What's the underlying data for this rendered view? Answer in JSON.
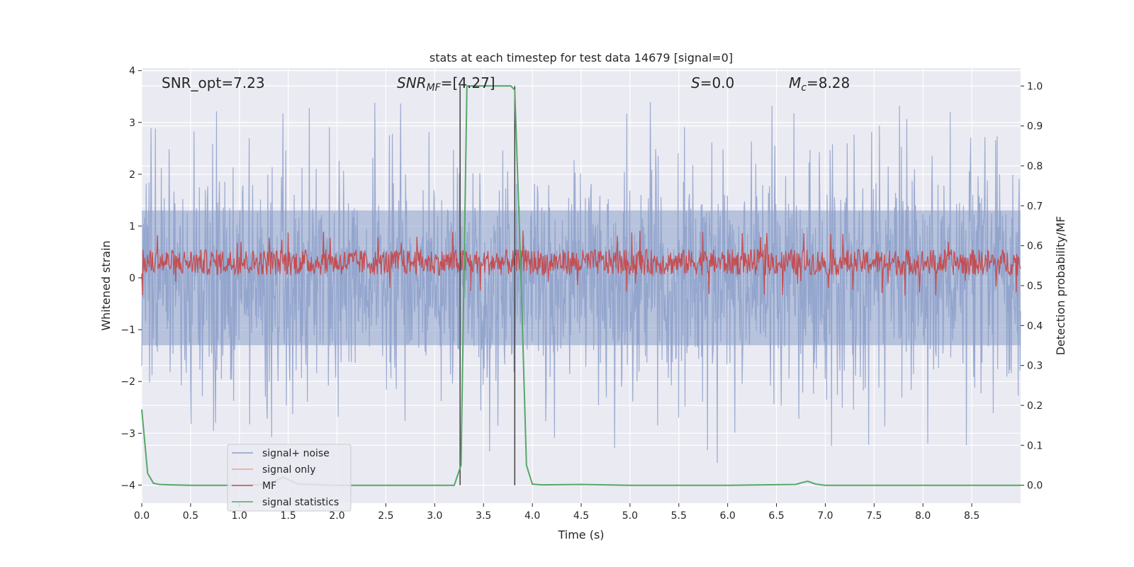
{
  "chart_data": {
    "type": "line",
    "title": "stats at each timestep for test data 14679 [signal=0]",
    "xlabel": "Time (s)",
    "ylabel_left": "Whitened strain",
    "ylabel_right": "Detection probability/MF",
    "xlim": [
      0.0,
      9.0
    ],
    "ylim_left": [
      -4.35,
      4.05
    ],
    "ylim_right": [
      -0.045,
      1.045
    ],
    "x_ticks": [
      "0.0",
      "0.5",
      "1.0",
      "1.5",
      "2.0",
      "2.5",
      "3.0",
      "3.5",
      "4.0",
      "4.5",
      "5.0",
      "5.5",
      "6.0",
      "6.5",
      "7.0",
      "7.5",
      "8.0",
      "8.5"
    ],
    "y_left_ticks": [
      "4",
      "3",
      "2",
      "1",
      "0",
      "−1",
      "−2",
      "−3",
      "−4"
    ],
    "y_right_ticks": [
      "1.0",
      "0.9",
      "0.8",
      "0.7",
      "0.6",
      "0.5",
      "0.4",
      "0.3",
      "0.2",
      "0.1",
      "0.0"
    ],
    "grid": true,
    "legend_position": "lower-left",
    "annotations": {
      "snr_opt": "SNR_opt=7.23",
      "snr_mf_main": "SNR",
      "snr_mf_sub": "MF",
      "snr_mf_value": "=[4.27]",
      "s_main": "S",
      "s_value": "=0.0",
      "mc_main": "M",
      "mc_sub": "c",
      "mc_value": "=8.28"
    },
    "vertical_lines_x": [
      3.26,
      3.82
    ],
    "series": [
      {
        "name": "signal+ noise",
        "color": "#8da0cb",
        "axis": "left",
        "description_values": {
          "noise_band_abs": 1.4,
          "spike_max": 3.6,
          "spike_min": -4.0
        }
      },
      {
        "name": "signal only",
        "color": "#e8a88c",
        "axis": "left",
        "values": []
      },
      {
        "name": "MF",
        "color": "#c44e52",
        "axis": "left",
        "baseline": 0.3,
        "amplitude": 0.25
      },
      {
        "name": "signal statistics",
        "color": "#55a868",
        "axis": "right",
        "x": [
          0.0,
          0.06,
          0.12,
          0.18,
          0.3,
          0.5,
          1.0,
          1.3,
          1.45,
          1.6,
          2.0,
          2.5,
          3.0,
          3.2,
          3.27,
          3.33,
          3.4,
          3.5,
          3.6,
          3.7,
          3.78,
          3.82,
          3.88,
          3.94,
          4.0,
          4.1,
          4.5,
          5.0,
          6.0,
          6.7,
          6.75,
          6.82,
          6.9,
          7.0,
          8.0,
          9.0
        ],
        "y": [
          0.19,
          0.03,
          0.005,
          0.002,
          0.001,
          0.0,
          0.0,
          0.003,
          0.02,
          0.003,
          0.0,
          0.0,
          0.0,
          0.0,
          0.05,
          1.0,
          1.0,
          1.0,
          1.0,
          1.0,
          1.0,
          0.99,
          0.55,
          0.05,
          0.003,
          0.001,
          0.002,
          0.0,
          0.0,
          0.002,
          0.006,
          0.01,
          0.003,
          0.0,
          0.0,
          0.0
        ]
      }
    ]
  }
}
